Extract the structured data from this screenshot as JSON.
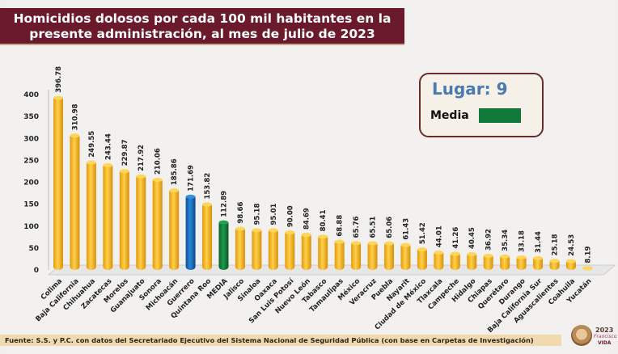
{
  "header": {
    "title_line1": "Homicidios dolosos por cada 100 mil habitantes en la",
    "title_line2": "presente administración, al mes de julio de 2023"
  },
  "legend": {
    "lugar": "Lugar: 9",
    "media_label": "Media",
    "media_color": "#107838"
  },
  "footer": {
    "source": "Fuente: S.S. y P.C. con datos del Secretariado Ejecutivo del Sistema Nacional de Seguridad Pública (con base en Carpetas de Investigación)",
    "logo_year": "2023",
    "logo_name": "Francisco",
    "logo_vida": "VIDA"
  },
  "colors": {
    "default_bar": "#f5b81c",
    "highlight_bar": "#1262b3",
    "media_bar": "#107838",
    "title_band": "#6b1a2b"
  },
  "chart_data": {
    "type": "bar",
    "title": "Homicidios dolosos por cada 100 mil habitantes en la presente administración, al mes de julio de 2023",
    "xlabel": "",
    "ylabel": "",
    "ylim": [
      0,
      400
    ],
    "yticks": [
      0,
      50,
      100,
      150,
      200,
      250,
      300,
      350,
      400
    ],
    "grid": false,
    "categories": [
      "Colima",
      "Baja California",
      "Chihuahua",
      "Zacatecas",
      "Morelos",
      "Guanajuato",
      "Sonora",
      "Michoacán",
      "Guerrero",
      "Quintana Roo",
      "MEDIA",
      "Jalisco",
      "Sinaloa",
      "Oaxaca",
      "San Luis Potosí",
      "Nuevo León",
      "Tabasco",
      "Tamaulipas",
      "México",
      "Veracruz",
      "Puebla",
      "Nayarit",
      "Ciudad de México",
      "Tlaxcala",
      "Campeche",
      "Hidalgo",
      "Chiapas",
      "Querétaro",
      "Durango",
      "Baja California Sur",
      "Aguascalientes",
      "Coahuila",
      "Yucatán"
    ],
    "values": [
      396.78,
      310.98,
      249.55,
      243.44,
      229.87,
      217.92,
      210.06,
      185.86,
      171.69,
      153.82,
      112.89,
      98.66,
      95.18,
      95.01,
      90.0,
      84.69,
      80.41,
      68.88,
      65.76,
      65.51,
      65.06,
      61.43,
      51.42,
      44.01,
      41.26,
      40.45,
      36.92,
      35.34,
      33.18,
      31.44,
      25.18,
      24.53,
      8.19
    ],
    "value_labels": [
      "396.78",
      "310.98",
      "249.55",
      "243.44",
      "229.87",
      "217.92",
      "210.06",
      "185.86",
      "171.69",
      "153.82",
      "112.89",
      "98.66",
      "95.18",
      "95.01",
      "90.00",
      "84.69",
      "80.41",
      "68.88",
      "65.76",
      "65.51",
      "65.06",
      "61.43",
      "51.42",
      "44.01",
      "41.26",
      "40.45",
      "36.92",
      "35.34",
      "33.18",
      "31.44",
      "25.18",
      "24.53",
      "8.19"
    ],
    "highlights": {
      "Guerrero": "highlight",
      "MEDIA": "media"
    }
  }
}
